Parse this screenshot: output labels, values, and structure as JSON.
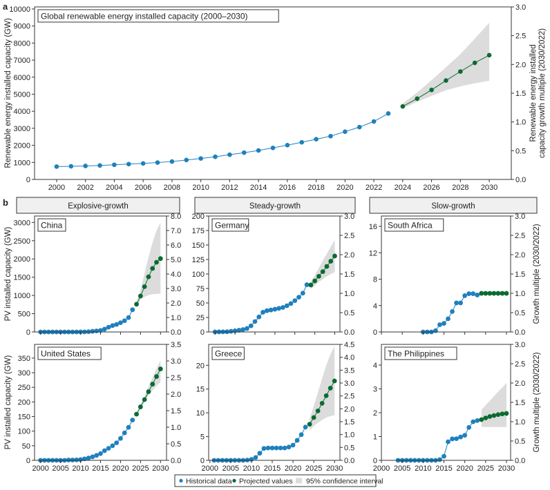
{
  "colors": {
    "historical": "#1f80bd",
    "projected": "#0a6b32",
    "ci": "#dcdcdc",
    "axis": "#333333",
    "header_fill": "#f0f0f0"
  },
  "panel_labels": {
    "a": "a",
    "b": "b"
  },
  "group_headers": [
    "Explosive-growth",
    "Steady-growth",
    "Slow-growth"
  ],
  "legend": {
    "historical": "Historical data",
    "projected": "Projected values",
    "ci": "95% confidence interval"
  },
  "chart_data": [
    {
      "type": "line",
      "title": "Global renewable energy installed capacity (2000–2030)",
      "ylabel": "Renewable energy installed capacity (GW)",
      "y2label": [
        "Renewable energy installed",
        "capacity growth multiple (2030/2022)"
      ],
      "xlim": [
        1998.47,
        2031.53
      ],
      "ylim": [
        0,
        10120
      ],
      "y2lim": [
        0,
        3.0
      ],
      "x_ticks": [
        "2000",
        "2002",
        "2004",
        "2006",
        "2008",
        "2010",
        "2012",
        "2014",
        "2016",
        "2018",
        "2020",
        "2022",
        "2024",
        "2026",
        "2028",
        "2030"
      ],
      "y_ticks": [
        "0",
        "1000",
        "2000",
        "3000",
        "4000",
        "5000",
        "6000",
        "7000",
        "8000",
        "9000",
        "10000"
      ],
      "y2_ticks": [
        "0.0",
        "0.5",
        "1.0",
        "1.5",
        "2.0",
        "2.5",
        "3.0"
      ],
      "hist_start": 2000,
      "hist": [
        754,
        770,
        790,
        820,
        860,
        900,
        940,
        990,
        1050,
        1140,
        1230,
        1330,
        1450,
        1570,
        1700,
        1850,
        2010,
        2180,
        2360,
        2540,
        2800,
        3070,
        3400,
        3870
      ],
      "proj_start": 2024,
      "proj": [
        4284,
        4740,
        5250,
        5800,
        6330,
        6840,
        7290
      ],
      "ci_lower": [
        4170,
        4550,
        4900,
        5230,
        5460,
        5640,
        5790
      ],
      "ci_upper": [
        4450,
        5100,
        5820,
        6580,
        7350,
        8260,
        9190
      ]
    },
    {
      "type": "line",
      "title": "China",
      "group": "Explosive-growth",
      "ylabel": "PV installed capacity (GW)",
      "xlim": [
        1998.5,
        2031.5
      ],
      "ylim": [
        0,
        3176
      ],
      "y2lim": [
        0,
        8.0
      ],
      "x_ticks": [
        "2000",
        "2005",
        "2010",
        "2015",
        "2020",
        "2025",
        "2030"
      ],
      "x_tick_labels_shown": false,
      "y_ticks": [
        "0",
        "500",
        "1000",
        "1500",
        "2000",
        "2500",
        "3000"
      ],
      "y2_ticks": [
        "0.0",
        "1.0",
        "2.0",
        "3.0",
        "4.0",
        "5.0",
        "6.0",
        "7.0",
        "8.0"
      ],
      "hist_start": 2000,
      "hist": [
        0,
        0,
        0,
        0,
        0,
        0,
        0,
        0,
        0,
        0.4,
        1,
        3,
        7,
        18,
        28,
        43,
        77,
        130,
        175,
        205,
        253,
        307,
        393,
        609
      ],
      "proj_start": 2024,
      "proj": [
        760,
        985,
        1240,
        1510,
        1740,
        1910,
        2010
      ],
      "ci_lower": [
        700,
        880,
        960,
        1010,
        1035,
        1045,
        1050
      ],
      "ci_upper": [
        820,
        1150,
        1600,
        2050,
        2450,
        2780,
        3000
      ]
    },
    {
      "type": "line",
      "title": "Germany",
      "group": "Steady-growth",
      "xlim": [
        1998.4,
        2031.3
      ],
      "ylim": [
        0,
        200
      ],
      "y2lim": [
        0,
        3.0
      ],
      "x_ticks": [
        "2000",
        "2005",
        "2010",
        "2015",
        "2020",
        "2025",
        "2030"
      ],
      "x_tick_labels_shown": false,
      "y_ticks": [
        "0",
        "25",
        "50",
        "75",
        "100",
        "125",
        "150",
        "175",
        "200"
      ],
      "y2_ticks": [
        "0.0",
        "0.5",
        "1.0",
        "1.5",
        "2.0",
        "2.5",
        "3.0"
      ],
      "hist_start": 2000,
      "hist": [
        0.1,
        0.2,
        0.3,
        0.4,
        1.1,
        2,
        2.9,
        4.2,
        6,
        10.6,
        18,
        25.9,
        34,
        36.7,
        37.9,
        39.2,
        40.7,
        42.3,
        45.2,
        49,
        54,
        60,
        67,
        81.5
      ],
      "proj_start": 2024,
      "proj": [
        81,
        88,
        96,
        104,
        113,
        122,
        131
      ],
      "ci_lower": [
        74,
        80,
        86,
        91,
        96,
        100,
        103
      ],
      "ci_upper": [
        87,
        98,
        110,
        123,
        135,
        147,
        159
      ]
    },
    {
      "type": "line",
      "title": "South Africa",
      "group": "Slow-growth",
      "y2label": "Growth multiple (2030/2022)",
      "xlim": [
        2000,
        2031
      ],
      "ylim": [
        0,
        17.57
      ],
      "y2lim": [
        0,
        3.0
      ],
      "x_ticks": [
        "2000",
        "2005",
        "2010",
        "2015",
        "2020",
        "2025",
        "2030"
      ],
      "x_tick_labels_shown": false,
      "y_ticks": [
        "0",
        "4",
        "8",
        "12",
        "16"
      ],
      "y2_ticks": [
        "0.0",
        "0.5",
        "1.0",
        "1.5",
        "2.0",
        "2.5",
        "3.0"
      ],
      "hist_start": 2010,
      "hist": [
        0,
        0,
        0,
        0.2,
        1.1,
        1.3,
        2.0,
        3.1,
        4.4,
        4.4,
        5.5,
        5.8,
        5.8,
        5.6
      ],
      "proj_start": 2024,
      "proj": [
        5.85,
        5.85,
        5.85,
        5.85,
        5.85,
        5.85,
        5.85
      ],
      "ci_lower": [
        5.6,
        5.6,
        5.6,
        5.6,
        5.6,
        5.6,
        5.6
      ],
      "ci_upper": [
        6.1,
        6.1,
        6.1,
        6.1,
        6.1,
        6.1,
        6.1
      ]
    },
    {
      "type": "line",
      "title": "United States",
      "group": "Explosive-growth",
      "ylabel": "PV installed capacity (GW)",
      "xlim": [
        1998.5,
        2031.5
      ],
      "ylim": [
        0,
        397
      ],
      "y2lim": [
        0,
        3.5
      ],
      "x_ticks": [
        "2000",
        "2005",
        "2010",
        "2015",
        "2020",
        "2025",
        "2030"
      ],
      "x_tick_labels_shown": true,
      "y_ticks": [
        "0",
        "50",
        "100",
        "150",
        "200",
        "250",
        "300",
        "350"
      ],
      "y2_ticks": [
        "0.0",
        "0.5",
        "1.0",
        "1.5",
        "2.0",
        "2.5",
        "3.0",
        "3.5"
      ],
      "hist_start": 2000,
      "hist": [
        0,
        0,
        0,
        0,
        0,
        0,
        0,
        1,
        1,
        1.5,
        2.5,
        5,
        8,
        12,
        17,
        23,
        33,
        41,
        50,
        60,
        75,
        94,
        113,
        138
      ],
      "proj_start": 2024,
      "proj": [
        158,
        183,
        208,
        235,
        261,
        287,
        313
      ],
      "ci_lower": [
        155,
        178,
        200,
        222,
        240,
        255,
        268
      ],
      "ci_upper": [
        162,
        190,
        220,
        252,
        283,
        315,
        342
      ]
    },
    {
      "type": "line",
      "title": "Greece",
      "group": "Steady-growth",
      "xlim": [
        1999.7,
        2031.3
      ],
      "ylim": [
        0,
        24.4
      ],
      "y2lim": [
        0,
        4.5
      ],
      "x_ticks": [
        "2000",
        "2005",
        "2010",
        "2015",
        "2020",
        "2025",
        "2030"
      ],
      "x_tick_labels_shown": true,
      "y_ticks": [
        "0",
        "5",
        "10",
        "15",
        "20"
      ],
      "y2_ticks": [
        "0.0",
        "0.5",
        "1.0",
        "1.5",
        "2.0",
        "2.5",
        "3.0",
        "3.5",
        "4.0",
        "4.5"
      ],
      "hist_start": 2001,
      "hist": [
        0,
        0,
        0,
        0,
        0,
        0,
        0,
        0,
        0.05,
        0.2,
        0.6,
        1.5,
        2.5,
        2.6,
        2.6,
        2.6,
        2.6,
        2.6,
        2.8,
        3.2,
        4.2,
        5.4,
        7.0
      ],
      "proj_start": 2024,
      "proj": [
        7.6,
        9.0,
        10.4,
        12.0,
        13.6,
        15.2,
        16.7
      ],
      "ci_lower": [
        6.3,
        7.2,
        7.9,
        8.5,
        9.0,
        9.3,
        9.5
      ],
      "ci_upper": [
        8.8,
        11.5,
        14.3,
        17.2,
        20.0,
        22.3,
        24.0
      ]
    },
    {
      "type": "line",
      "title": "The Philippines",
      "group": "Slow-growth",
      "y2label": "Growth multiple (2030/2022)",
      "xlim": [
        2000,
        2031
      ],
      "ylim": [
        0,
        4.87
      ],
      "y2lim": [
        0,
        3.0
      ],
      "x_ticks": [
        "2000",
        "2005",
        "2010",
        "2015",
        "2020",
        "2025",
        "2030"
      ],
      "x_tick_labels_shown": true,
      "y_ticks": [
        "0",
        "1",
        "2",
        "3",
        "4"
      ],
      "y2_ticks": [
        "0.0",
        "0.5",
        "1.0",
        "1.5",
        "2.0",
        "2.5",
        "3.0"
      ],
      "hist_start": 2004,
      "hist": [
        0,
        0,
        0,
        0,
        0,
        0,
        0,
        0,
        0,
        0,
        0.03,
        0.17,
        0.78,
        0.9,
        0.91,
        0.98,
        1.05,
        1.38,
        1.62,
        1.67
      ],
      "proj_start": 2024,
      "proj": [
        1.71,
        1.78,
        1.84,
        1.88,
        1.92,
        1.95,
        1.97
      ],
      "ci_lower": [
        1.4,
        1.4,
        1.4,
        1.4,
        1.4,
        1.4,
        1.4
      ],
      "ci_upper": [
        2.12,
        2.31,
        2.5,
        2.69,
        2.88,
        3.06,
        3.25
      ]
    }
  ]
}
